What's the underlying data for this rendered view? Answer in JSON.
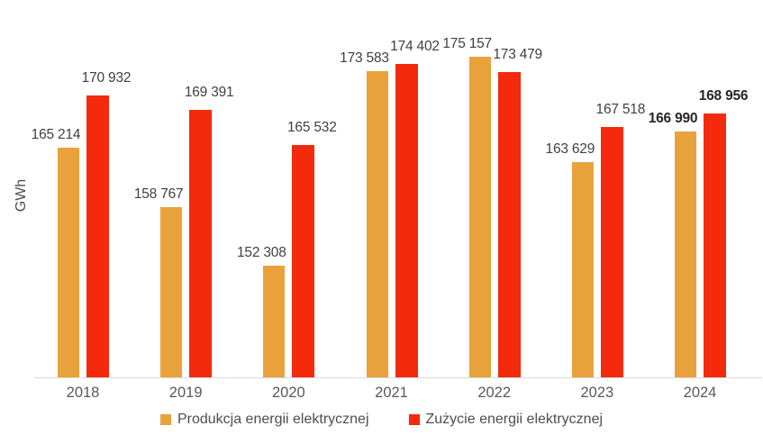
{
  "chart_data": {
    "type": "bar",
    "title": "",
    "xlabel": "",
    "ylabel": "GWh",
    "categories": [
      "2018",
      "2019",
      "2020",
      "2021",
      "2022",
      "2023",
      "2024"
    ],
    "series": [
      {
        "name": "Produkcja energii elektrycznej",
        "color": "#E9A23B",
        "values": [
          165214,
          158767,
          152308,
          173583,
          175157,
          163629,
          166990
        ],
        "labels": [
          "165 214",
          "158 767",
          "152 308",
          "173 583",
          "175 157",
          "163 629",
          "166 990"
        ]
      },
      {
        "name": "Zużycie energii elektrycznej",
        "color": "#F32B0C",
        "values": [
          170932,
          169391,
          165532,
          174402,
          173479,
          167518,
          168956
        ],
        "labels": [
          "170 932",
          "169 391",
          "165 532",
          "174 402",
          "173 479",
          "167 518",
          "168 956"
        ]
      }
    ],
    "ylim": [
      140000,
      181400
    ],
    "bold_categories": [
      "2024"
    ],
    "grid": false,
    "legend_position": "bottom",
    "axis_line_color": "#D9D9D9",
    "value_label_color": "#404040",
    "tick_label_color": "#595959"
  }
}
